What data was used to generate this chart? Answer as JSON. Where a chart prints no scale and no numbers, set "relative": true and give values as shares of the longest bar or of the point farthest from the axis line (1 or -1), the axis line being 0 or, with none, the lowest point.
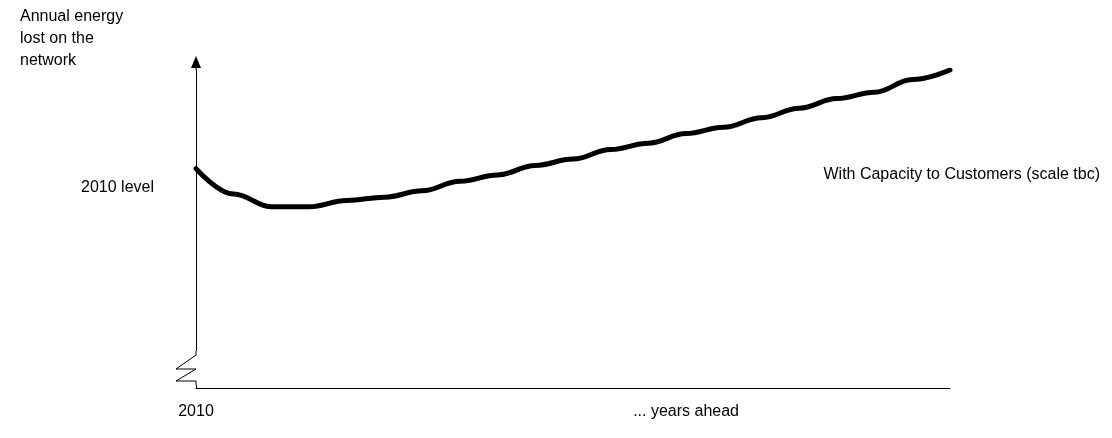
{
  "chart_data": {
    "type": "line",
    "relative": true,
    "ylabel": "Annual energy lost on the network",
    "categories": [
      "2010",
      null,
      null,
      null,
      null,
      null,
      null,
      null,
      null,
      null,
      null,
      null,
      null,
      "... years ahead",
      null,
      null,
      null,
      null,
      null,
      null,
      null
    ],
    "series": [
      {
        "name": "With Capacity to Customers (scale tbc)",
        "color": "#000000",
        "values": [
          0.69,
          0.61,
          0.57,
          0.57,
          0.59,
          0.6,
          0.62,
          0.65,
          0.67,
          0.7,
          0.72,
          0.75,
          0.77,
          0.8,
          0.82,
          0.85,
          0.88,
          0.91,
          0.93,
          0.97,
          1
        ]
      }
    ],
    "annotations": [
      "2010 level"
    ],
    "grid": false,
    "legend": false,
    "marker": "none",
    "line_style": "solid"
  }
}
